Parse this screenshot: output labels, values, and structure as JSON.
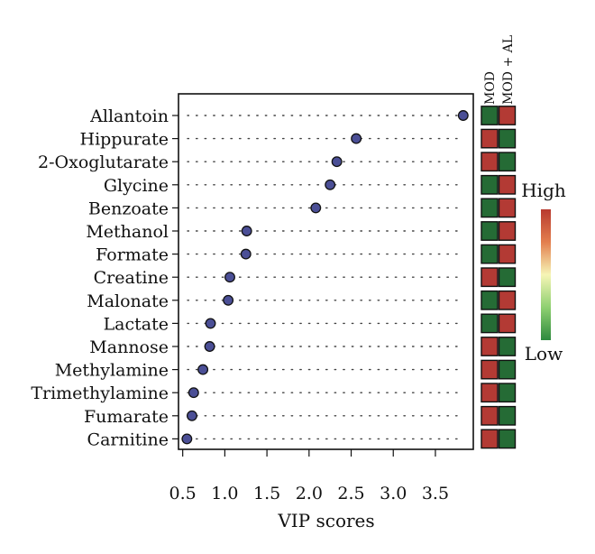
{
  "chart_data": {
    "type": "scatter",
    "title": "",
    "xlabel": "VIP scores",
    "ylabel": "",
    "xlim": [
      0.45,
      3.95
    ],
    "x_ticks": [
      0.5,
      1.0,
      1.5,
      2.0,
      2.5,
      3.0,
      3.5
    ],
    "x_tick_labels": [
      "0.5",
      "1.0",
      "1.5",
      "2.0",
      "2.5",
      "3.0",
      "3.5"
    ],
    "grid": false,
    "point_color": "#4b4f96",
    "point_stroke": "#111111",
    "categories": [
      "Allantoin",
      "Hippurate",
      "2-Oxoglutarate",
      "Glycine",
      "Benzoate",
      "Methanol",
      "Formate",
      "Creatine",
      "Malonate",
      "Lactate",
      "Mannose",
      "Methylamine",
      "Trimethylamine",
      "Fumarate",
      "Carnitine"
    ],
    "values": [
      3.83,
      2.56,
      2.33,
      2.25,
      2.08,
      1.26,
      1.25,
      1.06,
      1.04,
      0.83,
      0.82,
      0.74,
      0.63,
      0.61,
      0.55
    ],
    "heatmap": {
      "columns": [
        "MOD",
        "MOD + AL"
      ],
      "rows": [
        [
          "low",
          "high"
        ],
        [
          "high",
          "low"
        ],
        [
          "high",
          "low"
        ],
        [
          "low",
          "high"
        ],
        [
          "low",
          "high"
        ],
        [
          "low",
          "high"
        ],
        [
          "low",
          "high"
        ],
        [
          "high",
          "low"
        ],
        [
          "low",
          "high"
        ],
        [
          "low",
          "high"
        ],
        [
          "high",
          "low"
        ],
        [
          "high",
          "low"
        ],
        [
          "high",
          "low"
        ],
        [
          "high",
          "low"
        ],
        [
          "high",
          "low"
        ]
      ],
      "colors": {
        "high": "#b33a34",
        "low": "#256b35"
      },
      "legend": {
        "high_label": "High",
        "low_label": "Low",
        "gradient": [
          "#b83a2f",
          "#e37e4e",
          "#f6f5b6",
          "#8fd071",
          "#2e8a3e"
        ]
      }
    }
  }
}
